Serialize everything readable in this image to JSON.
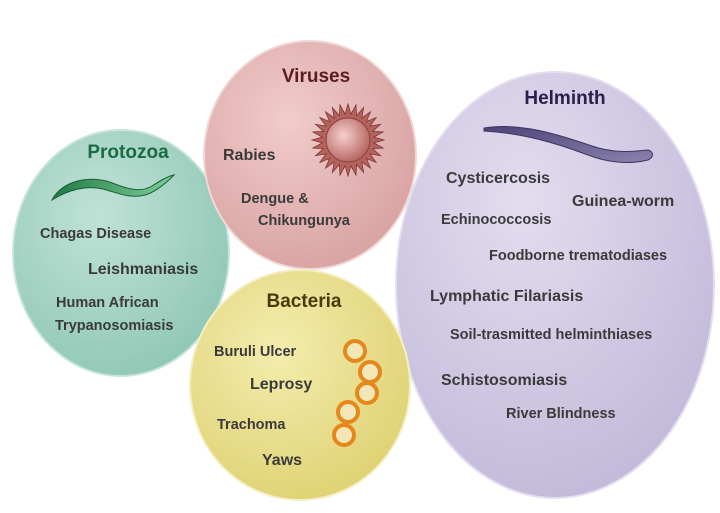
{
  "groups": {
    "protozoa": {
      "title": "Protozoa",
      "fill": "#a3d2c3",
      "title_color": "#1c6b42",
      "items": [
        "Chagas Disease",
        "Leishmaniasis",
        "Human African",
        "Trypanosomiasis"
      ]
    },
    "viruses": {
      "title": "Viruses",
      "fill": "#e2b6b5",
      "title_color": "#5a1f1c",
      "items": [
        "Rabies",
        "Dengue &",
        "Chikungunya"
      ]
    },
    "bacteria": {
      "title": "Bacteria",
      "fill": "#eadf8b",
      "title_color": "#4a3a0a",
      "items": [
        "Buruli Ulcer",
        "Leprosy",
        "Trachoma",
        "Yaws"
      ]
    },
    "helminth": {
      "title": "Helminth",
      "fill": "#d0c8e2",
      "title_color": "#2a1f4a",
      "items": [
        "Cysticercosis",
        "Guinea-worm",
        "Echinococcosis",
        "Foodborne trematodiases",
        "Lymphatic Filariasis",
        "Soil-trasmitted helminthiases",
        "Schistosomiasis",
        "River Blindness"
      ]
    }
  },
  "icons": [
    "protozoa-icon",
    "virus-icon",
    "bacteria-icon",
    "worm-icon"
  ]
}
